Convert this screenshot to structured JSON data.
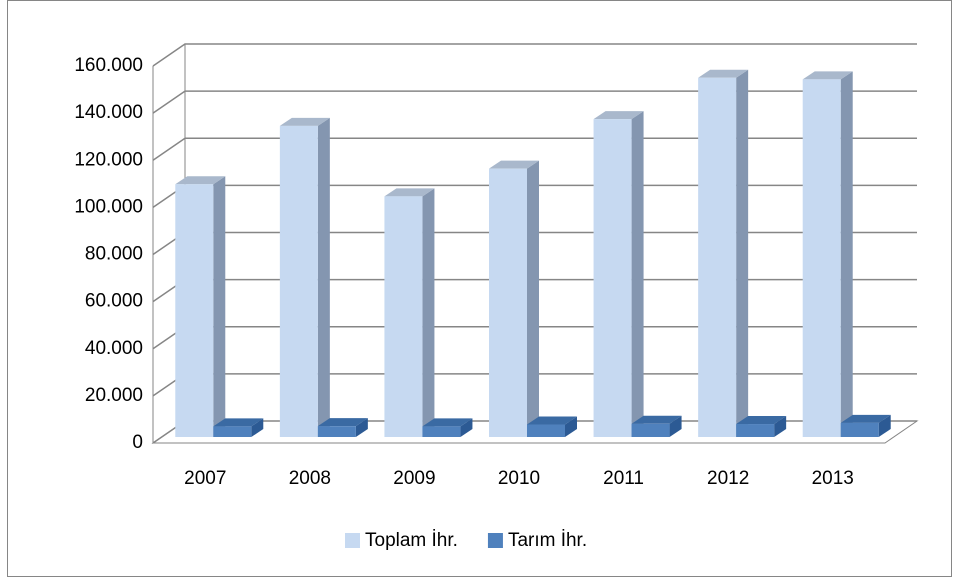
{
  "chart_data": {
    "type": "bar3d",
    "categories": [
      "2007",
      "2008",
      "2009",
      "2010",
      "2011",
      "2012",
      "2013"
    ],
    "series": [
      {
        "name": "Toplam İhr.",
        "color": "#c6d9f1",
        "values": [
          107272,
          132027,
          102143,
          113883,
          134907,
          152462,
          151803
        ]
      },
      {
        "name": "Tarım İhr.",
        "color": "#4f81bd",
        "values": [
          4500,
          4600,
          4500,
          5300,
          5600,
          5500,
          6000
        ]
      }
    ],
    "ylim": [
      0,
      160000
    ],
    "yticks": [
      0,
      {
        "value": 20000,
        "label": "20.000"
      },
      {
        "value": 40000,
        "label": "40.000"
      },
      {
        "value": 60000,
        "label": "60.000"
      },
      {
        "value": 80000,
        "label": "80.000"
      },
      {
        "value": 100000,
        "label": "100.000"
      },
      {
        "value": 120000,
        "label": "120.000"
      },
      {
        "value": 140000,
        "label": "140.000"
      },
      {
        "value": 160000,
        "label": "160.000"
      }
    ],
    "grid": true,
    "legend": "bottom"
  }
}
